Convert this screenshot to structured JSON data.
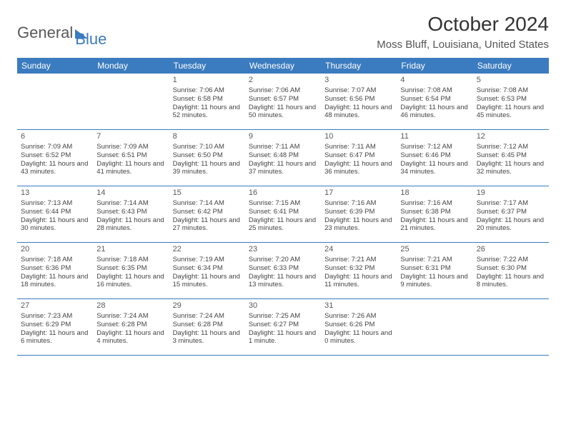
{
  "logo": {
    "word1": "General",
    "word2": "Blue"
  },
  "title": "October 2024",
  "location": "Moss Bluff, Louisiana, United States",
  "colors": {
    "header_bg": "#3b7bbf",
    "header_fg": "#ffffff",
    "row_border": "#3b7bbf",
    "text": "#444444",
    "title_color": "#333333",
    "logo_gray": "#595959",
    "logo_blue": "#3b7bbf",
    "page_bg": "#ffffff"
  },
  "dow": [
    "Sunday",
    "Monday",
    "Tuesday",
    "Wednesday",
    "Thursday",
    "Friday",
    "Saturday"
  ],
  "weeks": [
    [
      null,
      null,
      {
        "n": "1",
        "sr": "7:06 AM",
        "ss": "6:58 PM",
        "dl": "11 hours and 52 minutes."
      },
      {
        "n": "2",
        "sr": "7:06 AM",
        "ss": "6:57 PM",
        "dl": "11 hours and 50 minutes."
      },
      {
        "n": "3",
        "sr": "7:07 AM",
        "ss": "6:56 PM",
        "dl": "11 hours and 48 minutes."
      },
      {
        "n": "4",
        "sr": "7:08 AM",
        "ss": "6:54 PM",
        "dl": "11 hours and 46 minutes."
      },
      {
        "n": "5",
        "sr": "7:08 AM",
        "ss": "6:53 PM",
        "dl": "11 hours and 45 minutes."
      }
    ],
    [
      {
        "n": "6",
        "sr": "7:09 AM",
        "ss": "6:52 PM",
        "dl": "11 hours and 43 minutes."
      },
      {
        "n": "7",
        "sr": "7:09 AM",
        "ss": "6:51 PM",
        "dl": "11 hours and 41 minutes."
      },
      {
        "n": "8",
        "sr": "7:10 AM",
        "ss": "6:50 PM",
        "dl": "11 hours and 39 minutes."
      },
      {
        "n": "9",
        "sr": "7:11 AM",
        "ss": "6:48 PM",
        "dl": "11 hours and 37 minutes."
      },
      {
        "n": "10",
        "sr": "7:11 AM",
        "ss": "6:47 PM",
        "dl": "11 hours and 36 minutes."
      },
      {
        "n": "11",
        "sr": "7:12 AM",
        "ss": "6:46 PM",
        "dl": "11 hours and 34 minutes."
      },
      {
        "n": "12",
        "sr": "7:12 AM",
        "ss": "6:45 PM",
        "dl": "11 hours and 32 minutes."
      }
    ],
    [
      {
        "n": "13",
        "sr": "7:13 AM",
        "ss": "6:44 PM",
        "dl": "11 hours and 30 minutes."
      },
      {
        "n": "14",
        "sr": "7:14 AM",
        "ss": "6:43 PM",
        "dl": "11 hours and 28 minutes."
      },
      {
        "n": "15",
        "sr": "7:14 AM",
        "ss": "6:42 PM",
        "dl": "11 hours and 27 minutes."
      },
      {
        "n": "16",
        "sr": "7:15 AM",
        "ss": "6:41 PM",
        "dl": "11 hours and 25 minutes."
      },
      {
        "n": "17",
        "sr": "7:16 AM",
        "ss": "6:39 PM",
        "dl": "11 hours and 23 minutes."
      },
      {
        "n": "18",
        "sr": "7:16 AM",
        "ss": "6:38 PM",
        "dl": "11 hours and 21 minutes."
      },
      {
        "n": "19",
        "sr": "7:17 AM",
        "ss": "6:37 PM",
        "dl": "11 hours and 20 minutes."
      }
    ],
    [
      {
        "n": "20",
        "sr": "7:18 AM",
        "ss": "6:36 PM",
        "dl": "11 hours and 18 minutes."
      },
      {
        "n": "21",
        "sr": "7:18 AM",
        "ss": "6:35 PM",
        "dl": "11 hours and 16 minutes."
      },
      {
        "n": "22",
        "sr": "7:19 AM",
        "ss": "6:34 PM",
        "dl": "11 hours and 15 minutes."
      },
      {
        "n": "23",
        "sr": "7:20 AM",
        "ss": "6:33 PM",
        "dl": "11 hours and 13 minutes."
      },
      {
        "n": "24",
        "sr": "7:21 AM",
        "ss": "6:32 PM",
        "dl": "11 hours and 11 minutes."
      },
      {
        "n": "25",
        "sr": "7:21 AM",
        "ss": "6:31 PM",
        "dl": "11 hours and 9 minutes."
      },
      {
        "n": "26",
        "sr": "7:22 AM",
        "ss": "6:30 PM",
        "dl": "11 hours and 8 minutes."
      }
    ],
    [
      {
        "n": "27",
        "sr": "7:23 AM",
        "ss": "6:29 PM",
        "dl": "11 hours and 6 minutes."
      },
      {
        "n": "28",
        "sr": "7:24 AM",
        "ss": "6:28 PM",
        "dl": "11 hours and 4 minutes."
      },
      {
        "n": "29",
        "sr": "7:24 AM",
        "ss": "6:28 PM",
        "dl": "11 hours and 3 minutes."
      },
      {
        "n": "30",
        "sr": "7:25 AM",
        "ss": "6:27 PM",
        "dl": "11 hours and 1 minute."
      },
      {
        "n": "31",
        "sr": "7:26 AM",
        "ss": "6:26 PM",
        "dl": "11 hours and 0 minutes."
      },
      null,
      null
    ]
  ],
  "labels": {
    "sunrise": "Sunrise:",
    "sunset": "Sunset:",
    "daylight": "Daylight:"
  }
}
